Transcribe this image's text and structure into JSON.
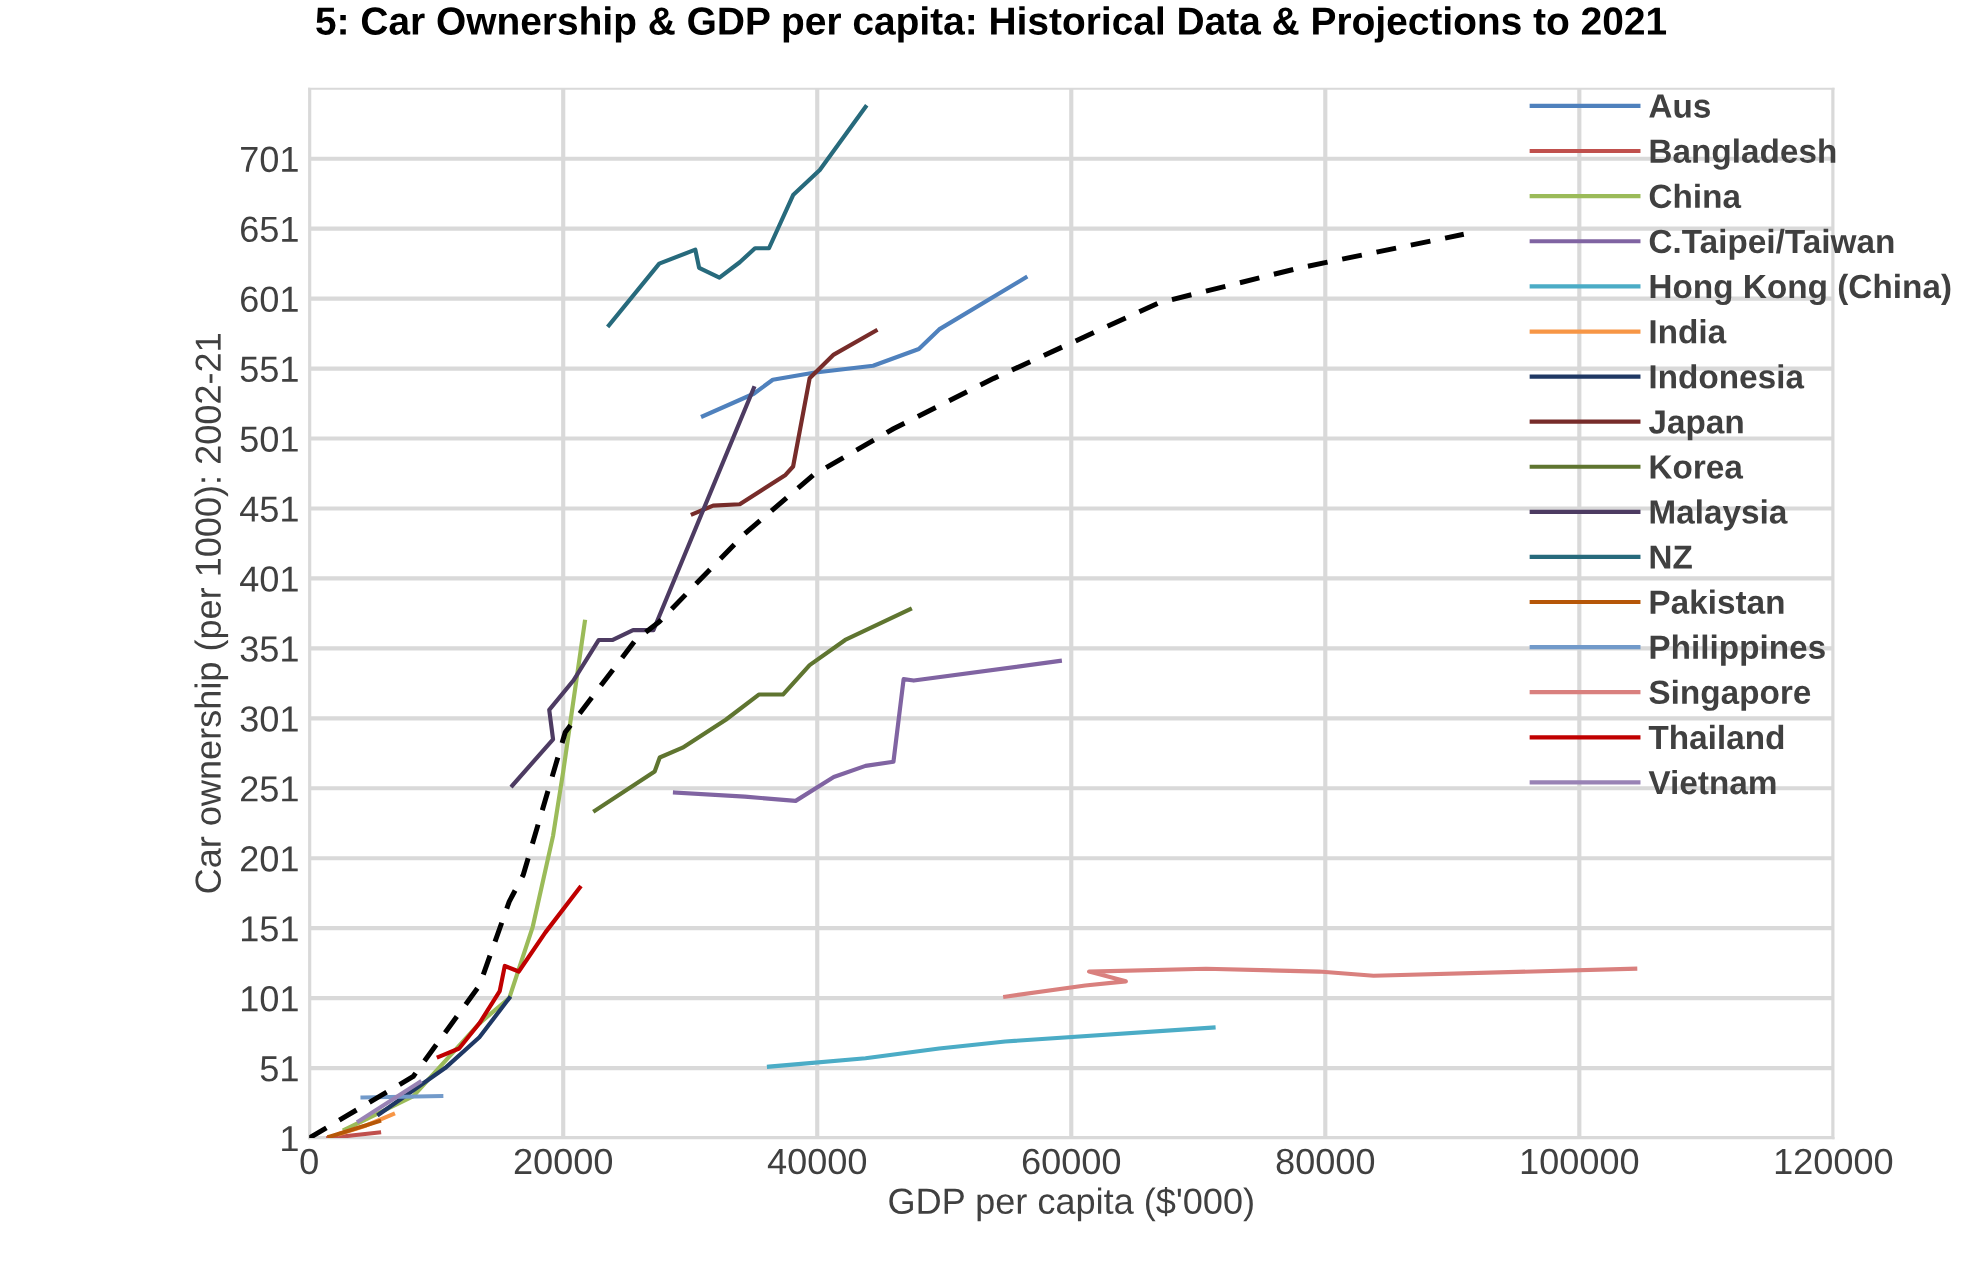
{
  "chart_data": {
    "type": "line",
    "title": "5: Car Ownership & GDP per capita: Historical Data & Projections to 2021",
    "xlabel": "GDP per capita ($'000)",
    "ylabel": "Car ownership (per 1000): 2002-21",
    "xlim": [
      0,
      120000
    ],
    "xticks": [
      0,
      20000,
      40000,
      60000,
      80000,
      100000,
      120000
    ],
    "ylim": [
      1,
      751
    ],
    "yticks": [
      1,
      51,
      101,
      151,
      201,
      251,
      301,
      351,
      401,
      451,
      501,
      551,
      601,
      651,
      701
    ],
    "grid": true,
    "legend": "right",
    "marker": "none",
    "line_style": "solid",
    "series": [
      {
        "name": "Aus",
        "color": "#4f81bd",
        "x": [
          31000,
          35000,
          36500,
          39700,
          44400,
          48000,
          49600,
          56400
        ],
        "values": [
          517,
          533,
          543,
          548,
          553,
          565,
          579,
          616
        ]
      },
      {
        "name": "Bangladesh",
        "color": "#c0504d",
        "x": [
          1500,
          3500,
          5500
        ],
        "values": [
          1,
          3,
          5
        ]
      },
      {
        "name": "China",
        "color": "#9bbb59",
        "x": [
          2800,
          8200,
          13400,
          15750,
          17600,
          19200,
          20000,
          21700
        ],
        "values": [
          7,
          31,
          83,
          101,
          152,
          217,
          263,
          370
        ]
      },
      {
        "name": "C.Taipei/Taiwan",
        "color": "#8064a2",
        "x": [
          28800,
          34300,
          38300,
          41300,
          43800,
          46000,
          46800,
          47600,
          59100
        ],
        "values": [
          248,
          245,
          242,
          259,
          267,
          270,
          329,
          328,
          342
        ]
      },
      {
        "name": "Hong Kong (China)",
        "color": "#4bacc6",
        "x": [
          36200,
          43800,
          49600,
          54800,
          71200
        ],
        "values": [
          52,
          58,
          65,
          70,
          80
        ]
      },
      {
        "name": "India",
        "color": "#f79646",
        "x": [
          2400,
          4500,
          6600
        ],
        "values": [
          4,
          10,
          18
        ]
      },
      {
        "name": "Indonesia",
        "color": "#1f3864",
        "x": [
          5500,
          10700,
          13400,
          15750
        ],
        "values": [
          18,
          51,
          73,
          101
        ]
      },
      {
        "name": "Japan",
        "color": "#772c2a",
        "x": [
          30200,
          31800,
          33900,
          37500,
          38100,
          39400,
          41300,
          44600
        ],
        "values": [
          447,
          453,
          454,
          475,
          481,
          544,
          561,
          578
        ]
      },
      {
        "name": "Korea",
        "color": "#5f7530",
        "x": [
          22500,
          27200,
          27600,
          29400,
          32800,
          35400,
          37300,
          39400,
          42200,
          47300
        ],
        "values": [
          235,
          263,
          273,
          280,
          300,
          318,
          318,
          339,
          357,
          379
        ]
      },
      {
        "name": "Malaysia",
        "color": "#4d3b62",
        "x": [
          16000,
          19200,
          18900,
          20800,
          22800,
          23900,
          25500,
          27100,
          35000
        ],
        "values": [
          253,
          286,
          307,
          328,
          357,
          357,
          364,
          364,
          537
        ]
      },
      {
        "name": "NZ",
        "color": "#276a7c",
        "x": [
          23600,
          27560,
          30400,
          30700,
          32300,
          33900,
          35100,
          36200,
          38100,
          40200,
          43800
        ],
        "values": [
          582,
          626,
          636,
          623,
          616,
          627,
          637,
          637,
          675,
          693,
          738
        ]
      },
      {
        "name": "Pakistan",
        "color": "#b65708",
        "x": [
          1600,
          5500
        ],
        "values": [
          2,
          13
        ]
      },
      {
        "name": "Philippines",
        "color": "#729aca",
        "x": [
          4200,
          10400
        ],
        "values": [
          30,
          31
        ]
      },
      {
        "name": "Singapore",
        "color": "#d9807e",
        "x": [
          54800,
          61100,
          64300,
          61400,
          70600,
          79500,
          83800,
          104400
        ],
        "values": [
          102,
          110,
          113,
          120,
          122,
          120,
          117,
          122
        ]
      },
      {
        "name": "Thailand",
        "color": "#c00000",
        "x": [
          10200,
          11800,
          13400,
          15000,
          15400,
          16500,
          18600,
          21300
        ],
        "values": [
          59,
          65,
          83,
          106,
          124,
          120,
          148,
          180
        ]
      },
      {
        "name": "Vietnam",
        "color": "#9983b5",
        "x": [
          3900,
          8700
        ],
        "values": [
          13,
          41
        ]
      },
      {
        "color": "#000000",
        "line_style": "dashed",
        "x": [
          0,
          8190,
          13400,
          15750,
          16850,
          20160,
          25700,
          27560,
          34300,
          39700,
          46000,
          53900,
          66900,
          78000,
          90900
        ],
        "values": [
          1,
          45,
          110,
          170,
          189,
          291,
          357,
          370,
          433,
          475,
          508,
          544,
          598,
          623,
          647
        ]
      }
    ]
  }
}
